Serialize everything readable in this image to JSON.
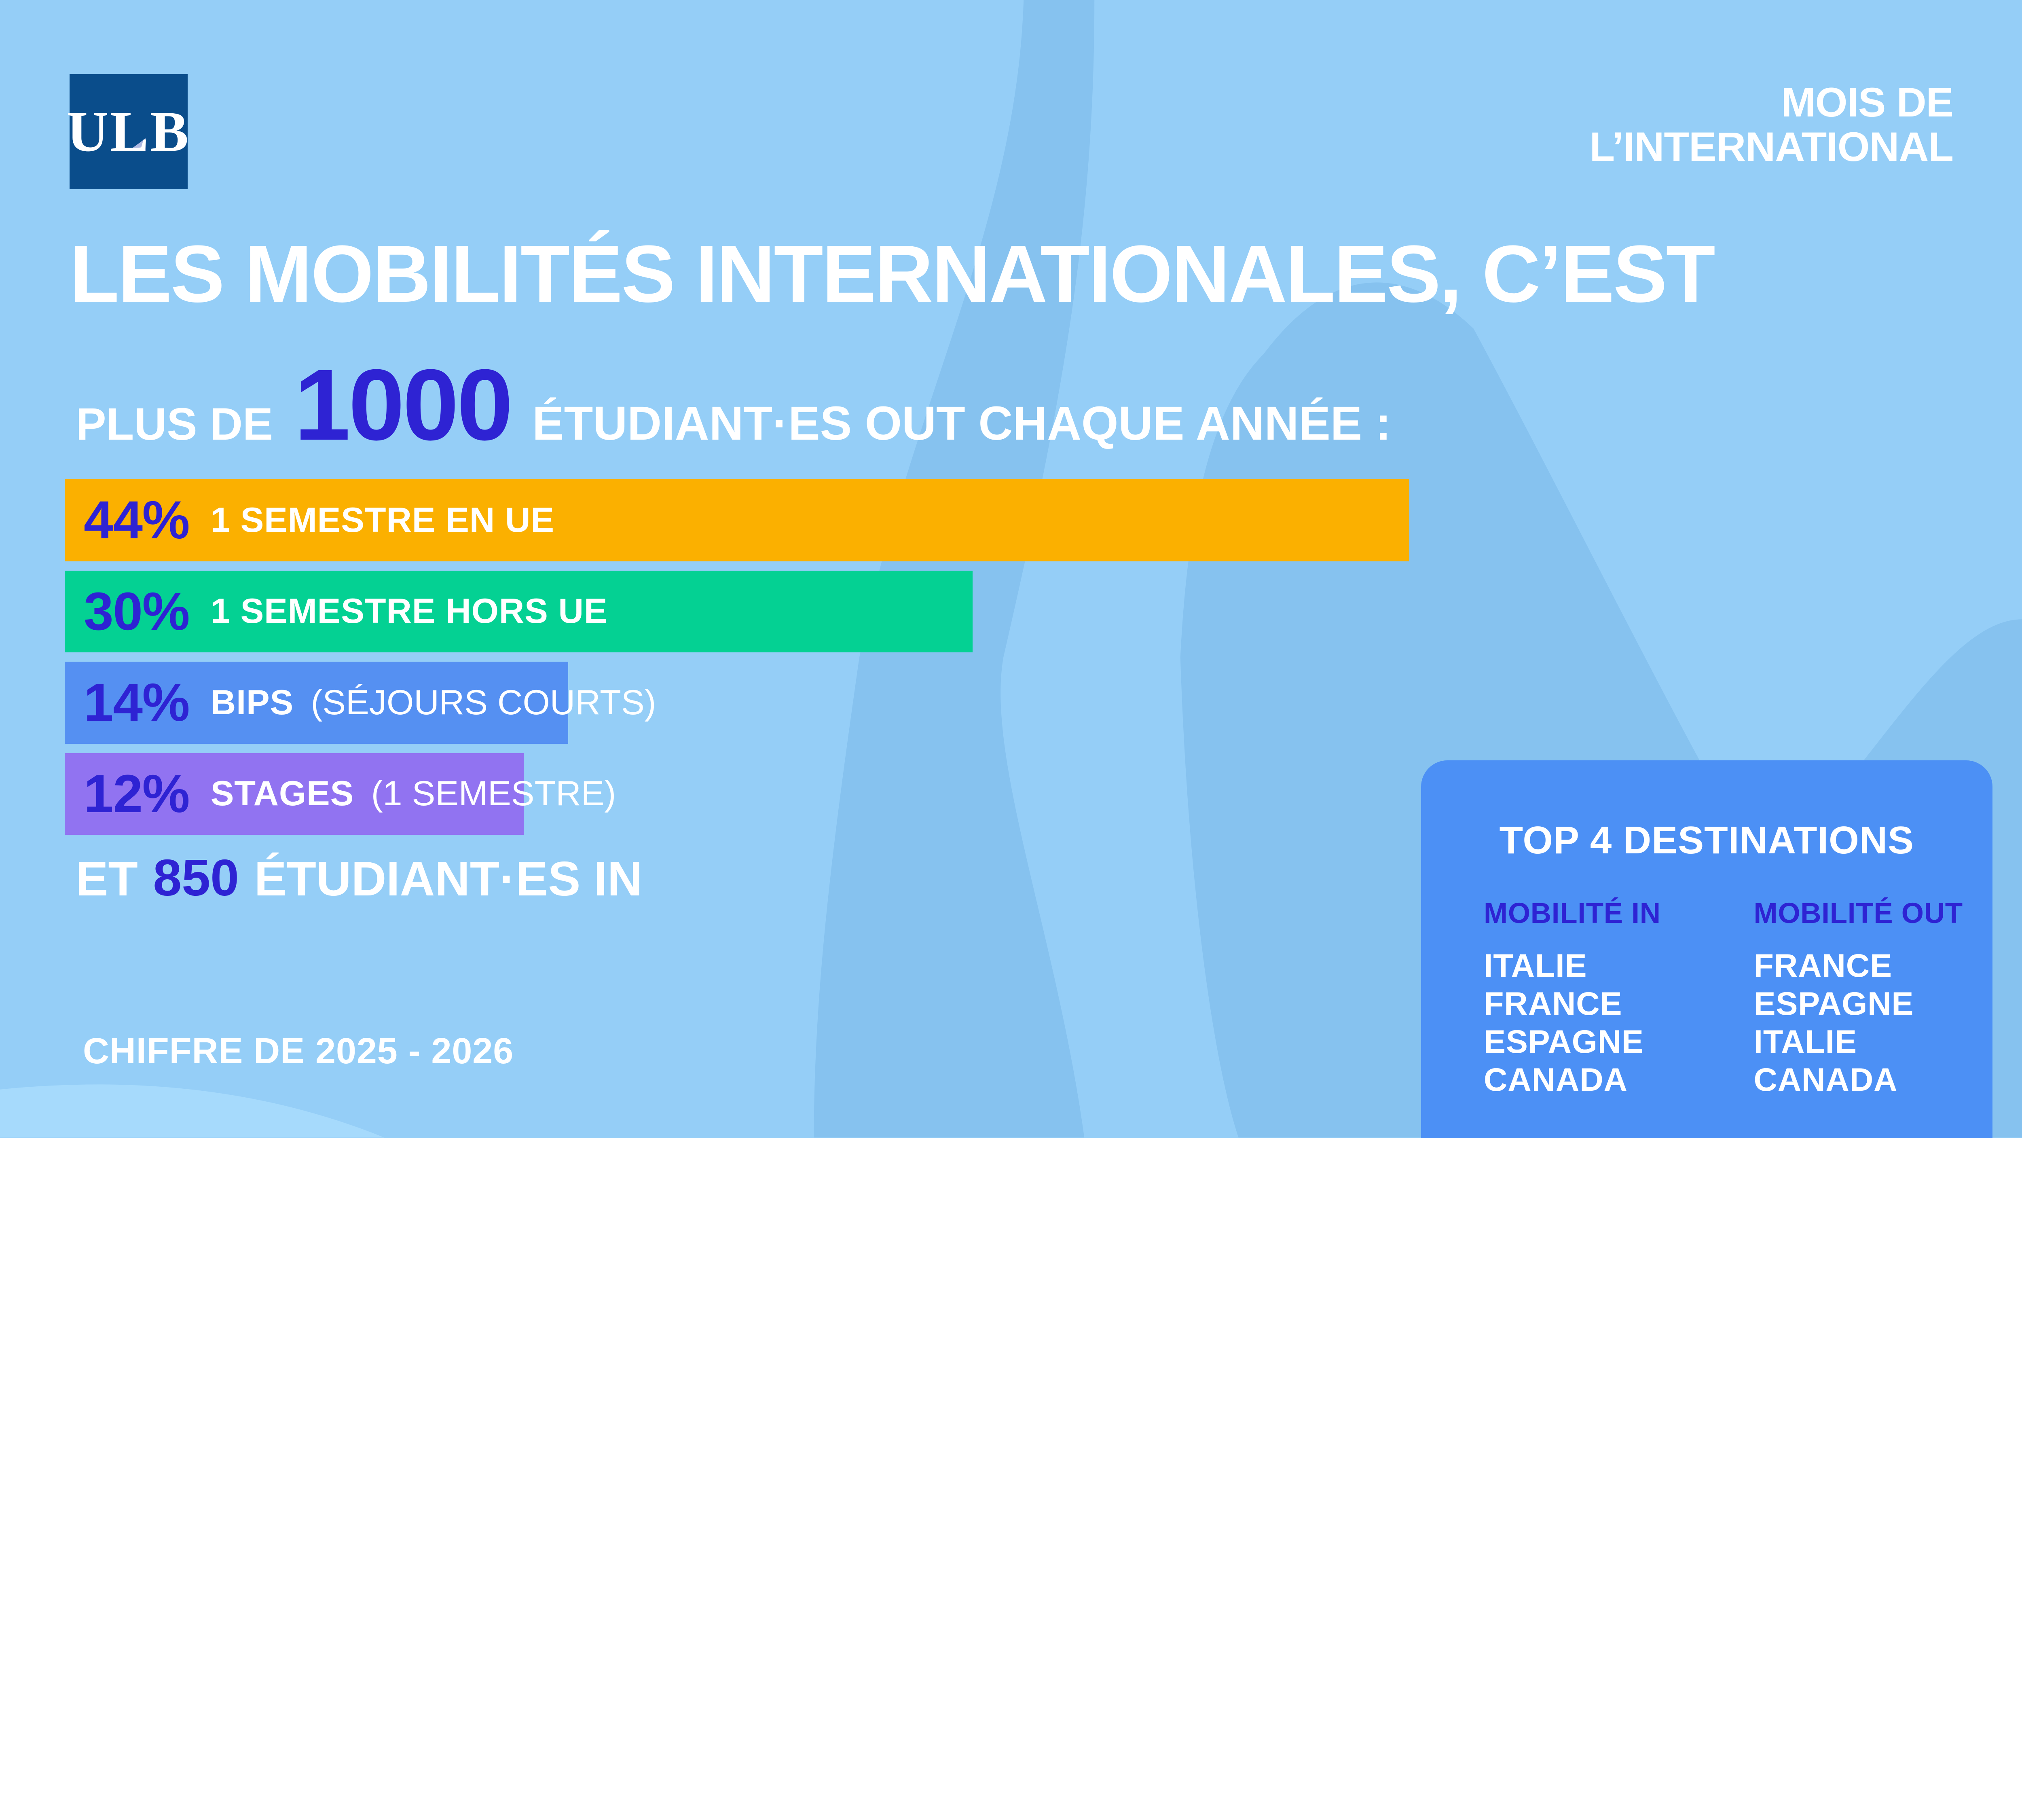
{
  "logo": {
    "text": "ULB"
  },
  "badge": {
    "line1": "MOIS DE",
    "line2": "L’INTERNATIONAL"
  },
  "title": "LES MOBILITÉS INTERNATIONALES, C’EST",
  "intro": {
    "prefix": "PLUS DE",
    "number": "1000",
    "suffix": "ÉTUDIANT·ES OUT CHAQUE ANNÉE :"
  },
  "bars": [
    {
      "id": "semestre-en-ue",
      "pct": "44%",
      "label": "1 SEMESTRE EN UE",
      "note": "",
      "width_vw": 66.5,
      "color": "#FBB000"
    },
    {
      "id": "semestre-hors-ue",
      "pct": "30%",
      "label": "1 SEMESTRE HORS UE",
      "note": "",
      "width_vw": 44.9,
      "color": "#04D193"
    },
    {
      "id": "bips",
      "pct": "14%",
      "label": "BIPS",
      "note": "(SÉJOURS COURTS)",
      "width_vw": 24.9,
      "color": "#5590F2"
    },
    {
      "id": "stages",
      "pct": "12%",
      "label": "STAGES",
      "note": "(1 SEMESTRE)",
      "width_vw": 22.7,
      "color": "#9173F1"
    }
  ],
  "in_line": {
    "prefix": "ET",
    "number": "850",
    "suffix": "ÉTUDIANT·ES IN"
  },
  "footnote": "CHIFFRE DE 2025 - 2026",
  "panel": {
    "title": "TOP 4 DESTINATIONS",
    "columns": [
      {
        "header": "MOBILITÉ IN",
        "items": [
          "ITALIE",
          "FRANCE",
          "ESPAGNE",
          "CANADA"
        ]
      },
      {
        "header": "MOBILITÉ OUT",
        "items": [
          "FRANCE",
          "ESPAGNE",
          "ITALIE",
          "CANADA"
        ]
      }
    ]
  },
  "colors": {
    "background": "#95CEF7",
    "background_dark_wave": "#86C2EF",
    "background_light_wave": "#A6DAFC",
    "logo_navy": "#0A4D8B",
    "accent_blue": "#2E23D3",
    "bar_orange": "#FBB000",
    "bar_green": "#04D193",
    "bar_blue": "#5590F2",
    "bar_purple": "#9173F1",
    "panel_blue": "#4C90F5",
    "text_white": "#FFFFFF"
  },
  "chart_data": {
    "type": "bar",
    "title": "PLUS DE 1000 ÉTUDIANT·ES OUT CHAQUE ANNÉE :",
    "categories": [
      "1 SEMESTRE EN UE",
      "1 SEMESTRE HORS UE",
      "BIPS (SÉJOURS COURTS)",
      "STAGES (1 SEMESTRE)"
    ],
    "values": [
      44,
      30,
      14,
      12
    ],
    "unit": "%",
    "bar_colors": [
      "#FBB000",
      "#04D193",
      "#5590F2",
      "#9173F1"
    ],
    "orientation": "horizontal",
    "annotations": {
      "students_out_per_year": 1000,
      "students_in": 850,
      "period": "2025 - 2026",
      "top4_destinations_in": [
        "ITALIE",
        "FRANCE",
        "ESPAGNE",
        "CANADA"
      ],
      "top4_destinations_out": [
        "FRANCE",
        "ESPAGNE",
        "ITALIE",
        "CANADA"
      ]
    },
    "legend_position": "none",
    "grid": false
  }
}
